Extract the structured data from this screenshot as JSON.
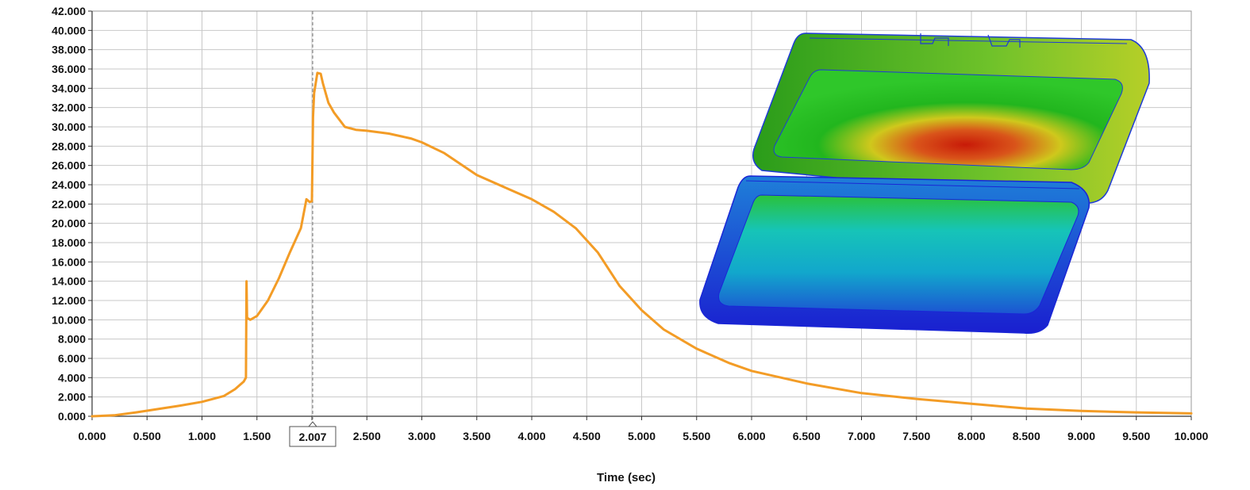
{
  "chart_data": {
    "type": "line",
    "title": "",
    "xlabel": "Time (sec)",
    "ylabel": "",
    "xlim": [
      0,
      10
    ],
    "ylim": [
      0,
      42
    ],
    "grid": true,
    "line_color": "#f39c26",
    "x_ticks": [
      "0.000",
      "0.500",
      "1.000",
      "1.500",
      "2.000",
      "2.500",
      "3.000",
      "3.500",
      "4.000",
      "4.500",
      "5.000",
      "5.500",
      "6.000",
      "6.500",
      "7.000",
      "7.500",
      "8.000",
      "8.500",
      "9.000",
      "9.500",
      "10.000"
    ],
    "y_ticks": [
      "0.000",
      "2.000",
      "4.000",
      "6.000",
      "8.000",
      "10.000",
      "12.000",
      "14.000",
      "16.000",
      "18.000",
      "20.000",
      "22.000",
      "24.000",
      "26.000",
      "28.000",
      "30.000",
      "32.000",
      "34.000",
      "36.000",
      "38.000",
      "40.000",
      "42.000"
    ],
    "cursor": {
      "x": 2.007,
      "label": "2.007"
    },
    "series": [
      {
        "x": [
          0,
          0.2,
          0.4,
          0.6,
          0.8,
          1.0,
          1.2,
          1.3,
          1.38,
          1.4,
          1.405,
          1.41,
          1.44,
          1.5,
          1.6,
          1.7,
          1.8,
          1.9,
          1.95,
          1.98,
          2.0,
          2.01,
          2.02,
          2.05,
          2.08,
          2.1,
          2.15,
          2.2,
          2.3,
          2.4,
          2.5,
          2.7,
          2.9,
          3.0,
          3.2,
          3.5,
          3.8,
          4.0,
          4.2,
          4.4,
          4.6,
          4.8,
          5.0,
          5.2,
          5.5,
          5.8,
          6.0,
          6.5,
          7.0,
          7.5,
          8.0,
          8.5,
          9.0,
          9.5,
          10.0
        ],
        "y": [
          0,
          0.1,
          0.4,
          0.75,
          1.1,
          1.5,
          2.1,
          2.8,
          3.6,
          4.0,
          14.0,
          10.2,
          10.0,
          10.4,
          12.0,
          14.3,
          17.0,
          19.5,
          22.5,
          22.2,
          22.3,
          31.0,
          33.5,
          35.6,
          35.5,
          34.5,
          32.5,
          31.5,
          30.0,
          29.7,
          29.6,
          29.3,
          28.8,
          28.4,
          27.3,
          25.0,
          23.5,
          22.5,
          21.2,
          19.5,
          17.0,
          13.5,
          11.0,
          9.0,
          7.0,
          5.5,
          4.7,
          3.4,
          2.4,
          1.8,
          1.3,
          0.8,
          0.55,
          0.4,
          0.3
        ]
      }
    ]
  },
  "inset_image": {
    "description_icon": "thermal-simulation-box-icon",
    "colors": [
      "#1a23d6",
      "#12b7c9",
      "#19c21f",
      "#d8d21a",
      "#d62a10"
    ]
  }
}
